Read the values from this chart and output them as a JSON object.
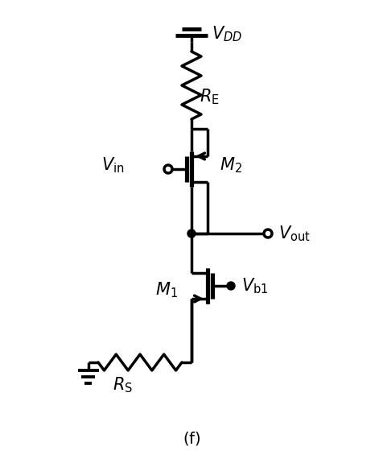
{
  "bg_color": "#ffffff",
  "line_color": "#000000",
  "lw": 2.5,
  "fig_width": 4.77,
  "fig_height": 5.75,
  "dpi": 100
}
